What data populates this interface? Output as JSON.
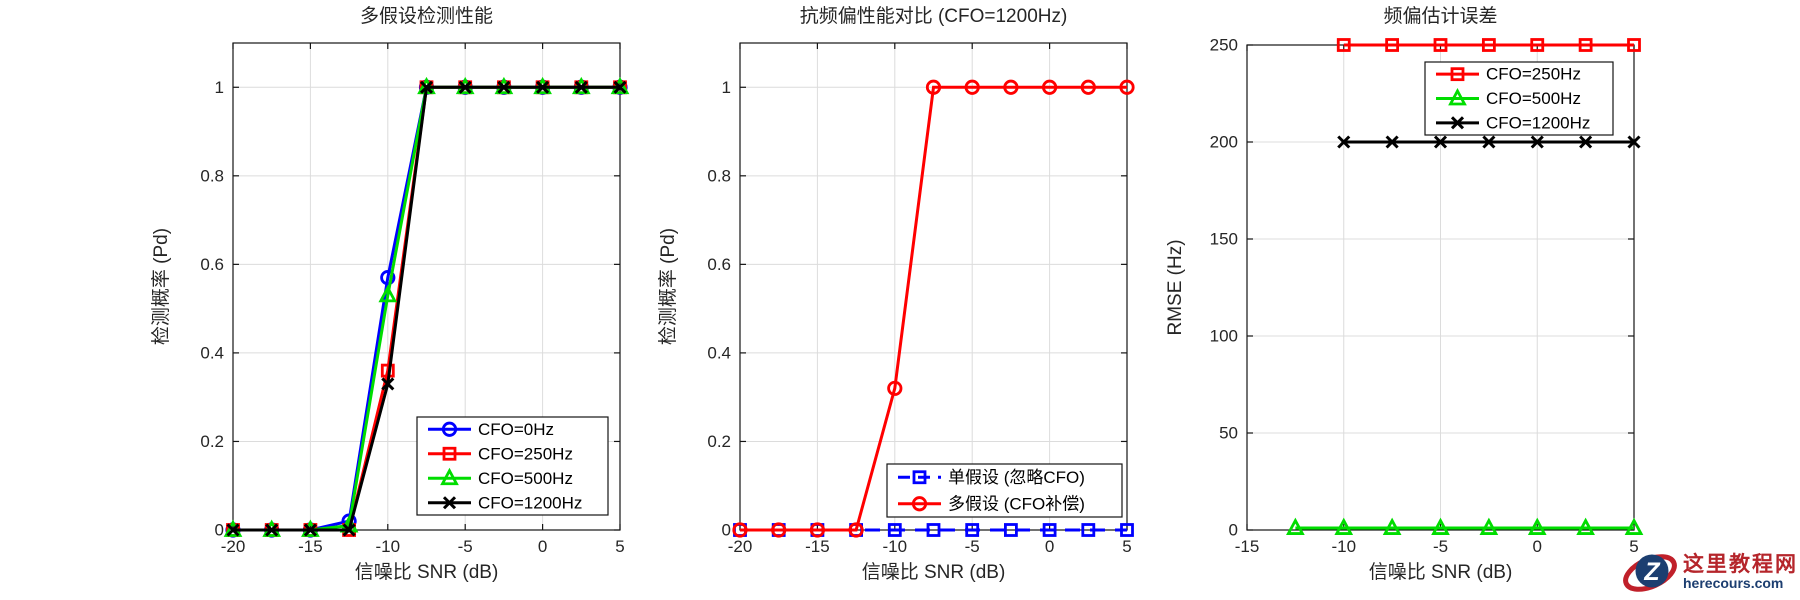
{
  "chart_data": [
    {
      "type": "line",
      "title": "多假设检测性能",
      "xlabel": "信噪比 SNR (dB)",
      "ylabel": "检测概率 (Pd)",
      "xlim": [
        -20,
        5
      ],
      "ylim": [
        0,
        1.1
      ],
      "xticks": [
        -20,
        -15,
        -10,
        -5,
        0,
        5
      ],
      "yticks": [
        0,
        0.2,
        0.4,
        0.6,
        0.8,
        1
      ],
      "grid": true,
      "legend_location": "southeast",
      "x": [
        -20,
        -17.5,
        -15,
        -12.5,
        -10,
        -7.5,
        -5,
        -2.5,
        0,
        2.5,
        5
      ],
      "series": [
        {
          "name": "CFO=0Hz",
          "color": "#0000ff",
          "marker": "circle",
          "line": "solid",
          "y": [
            0,
            0,
            0,
            0.02,
            0.57,
            1,
            1,
            1,
            1,
            1,
            1
          ]
        },
        {
          "name": "CFO=250Hz",
          "color": "#ff0000",
          "marker": "square",
          "line": "solid",
          "y": [
            0,
            0,
            0,
            0,
            0.36,
            1,
            1,
            1,
            1,
            1,
            1
          ]
        },
        {
          "name": "CFO=500Hz",
          "color": "#00dd00",
          "marker": "triangle",
          "line": "solid",
          "y": [
            0,
            0,
            0,
            0.01,
            0.53,
            1,
            1,
            1,
            1,
            1,
            1
          ]
        },
        {
          "name": "CFO=1200Hz",
          "color": "#000000",
          "marker": "x",
          "line": "solid",
          "y": [
            0,
            0,
            0,
            0,
            0.33,
            1,
            1,
            1,
            1,
            1,
            1
          ]
        }
      ]
    },
    {
      "type": "line",
      "title": "抗频偏性能对比 (CFO=1200Hz)",
      "xlabel": "信噪比 SNR (dB)",
      "ylabel": "检测概率 (Pd)",
      "xlim": [
        -20,
        5
      ],
      "ylim": [
        0,
        1.1
      ],
      "xticks": [
        -20,
        -15,
        -10,
        -5,
        0,
        5
      ],
      "yticks": [
        0,
        0.2,
        0.4,
        0.6,
        0.8,
        1
      ],
      "grid": true,
      "legend_location": "southeast",
      "x": [
        -20,
        -17.5,
        -15,
        -12.5,
        -10,
        -7.5,
        -5,
        -2.5,
        0,
        2.5,
        5
      ],
      "series": [
        {
          "name": "单假设 (忽略CFO)",
          "color": "#0000ff",
          "marker": "square",
          "line": "dashed",
          "y": [
            0,
            0,
            0,
            0,
            0,
            0,
            0,
            0,
            0,
            0,
            0
          ]
        },
        {
          "name": "多假设 (CFO补偿)",
          "color": "#ff0000",
          "marker": "circle",
          "line": "solid",
          "y": [
            0,
            0,
            0,
            0,
            0.32,
            1,
            1,
            1,
            1,
            1,
            1
          ]
        }
      ]
    },
    {
      "type": "line",
      "title": "频偏估计误差",
      "xlabel": "信噪比 SNR (dB)",
      "ylabel": "RMSE (Hz)",
      "xlim": [
        -15,
        5
      ],
      "ylim": [
        0,
        250
      ],
      "xticks": [
        -15,
        -10,
        -5,
        0,
        5
      ],
      "yticks": [
        0,
        50,
        100,
        150,
        200,
        250
      ],
      "grid": true,
      "legend_location": "northeast",
      "series": [
        {
          "name": "CFO=250Hz",
          "color": "#ff0000",
          "marker": "square",
          "line": "solid",
          "x": [
            -10,
            -7.5,
            -5,
            -2.5,
            0,
            2.5,
            5
          ],
          "y": [
            250,
            250,
            250,
            250,
            250,
            250,
            250
          ]
        },
        {
          "name": "CFO=500Hz",
          "color": "#00dd00",
          "marker": "triangle",
          "line": "solid",
          "x": [
            -12.5,
            -10,
            -7.5,
            -5,
            -2.5,
            0,
            2.5,
            5
          ],
          "y": [
            1,
            1,
            1,
            1,
            1,
            1,
            1,
            1
          ]
        },
        {
          "name": "CFO=1200Hz",
          "color": "#000000",
          "marker": "x",
          "line": "solid",
          "x": [
            -10,
            -7.5,
            -5,
            -2.5,
            0,
            2.5,
            5
          ],
          "y": [
            200,
            200,
            200,
            200,
            200,
            200,
            200
          ]
        }
      ]
    }
  ],
  "watermark": {
    "logo_letter": "Z",
    "title": "这里教程网",
    "domain": "herecours.com",
    "title_color": "#b5252b",
    "domain_color": "#1c3e70",
    "logo_circle_color": "#1c3e70",
    "logo_swoosh_color": "#c0202a"
  },
  "style": {
    "text_color": "#262626",
    "grid_color": "#dcdcdc",
    "box_color": "#151515"
  }
}
